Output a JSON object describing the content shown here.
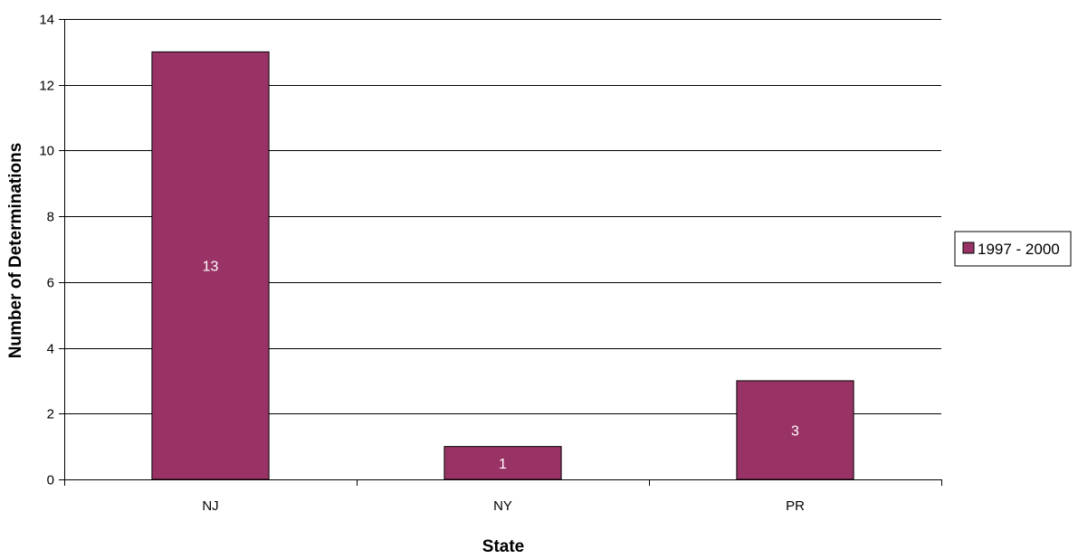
{
  "chart_data": {
    "type": "bar",
    "categories": [
      "NJ",
      "NY",
      "PR"
    ],
    "series": [
      {
        "name": "1997 - 2000",
        "values": [
          13,
          1,
          3
        ]
      }
    ],
    "data_labels": [
      "13",
      "1",
      "3"
    ],
    "title": "",
    "xlabel": "State",
    "ylabel": "Number of Determinations",
    "ylim": [
      0,
      14
    ],
    "yticks": [
      0,
      2,
      4,
      6,
      8,
      10,
      12,
      14
    ],
    "grid": true,
    "legend_position": "right",
    "colors": {
      "bar": "#993366",
      "bar_border": "#000000",
      "grid": "#000000",
      "background": "#ffffff"
    }
  }
}
